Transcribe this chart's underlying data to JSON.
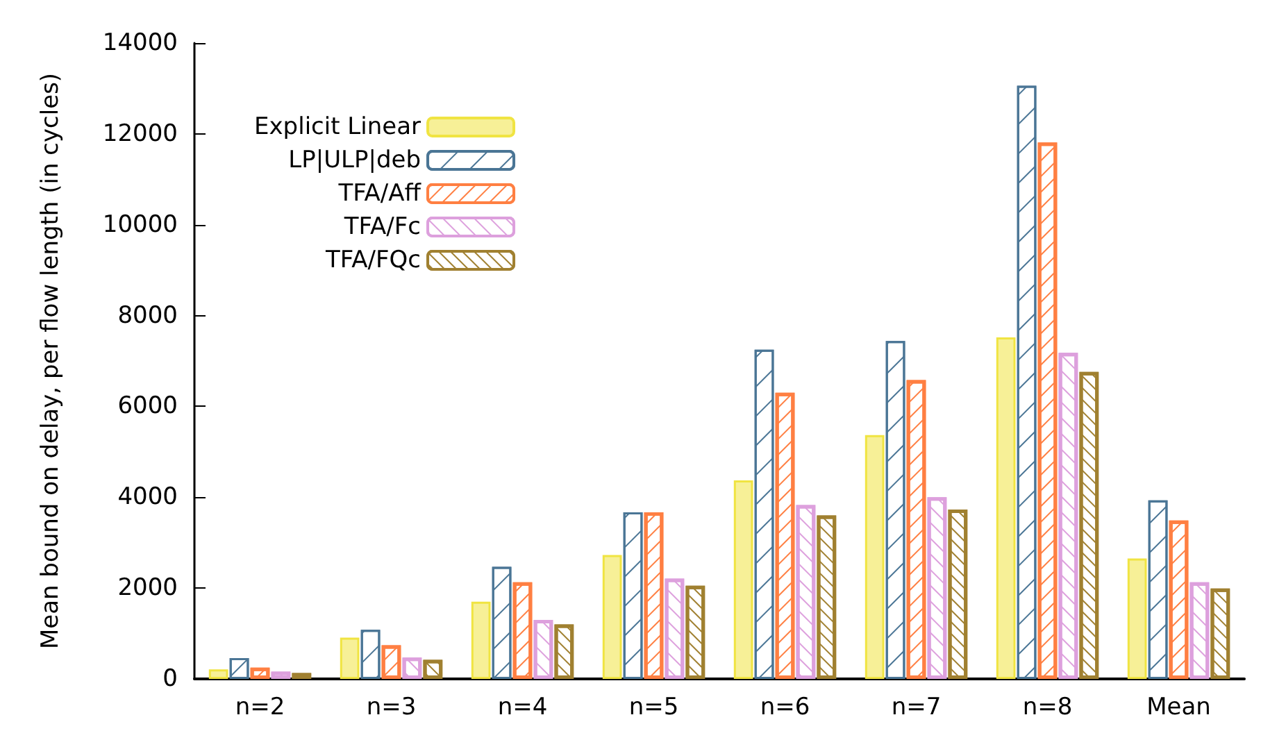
{
  "chart_data": {
    "type": "bar",
    "ylabel": "Mean bound on delay, per flow length (in cycles)",
    "categories": [
      "n=2",
      "n=3",
      "n=4",
      "n=5",
      "n=6",
      "n=7",
      "n=8",
      "Mean"
    ],
    "series": [
      {
        "name": "Explicit Linear",
        "color": "#f0e442",
        "values": [
          210,
          910,
          1700,
          2730,
          4370,
          5370,
          7520,
          2650
        ]
      },
      {
        "name": "LP|ULP|deb",
        "color": "#4a7595",
        "values": [
          460,
          1080,
          2470,
          3670,
          7250,
          7440,
          13060,
          3930
        ]
      },
      {
        "name": "TFA/Aff",
        "color": "#ff7f42",
        "values": [
          250,
          740,
          2130,
          3670,
          6300,
          6580,
          11810,
          3490
        ]
      },
      {
        "name": "TFA/Fc",
        "color": "#dda0dd",
        "values": [
          160,
          470,
          1300,
          2210,
          3830,
          4000,
          7180,
          2130
        ]
      },
      {
        "name": "TFA/FQc",
        "color": "#a08030",
        "values": [
          130,
          420,
          1200,
          2050,
          3600,
          3730,
          6760,
          1990
        ]
      }
    ],
    "ylim": [
      0,
      14000
    ],
    "yticks": [
      0,
      2000,
      4000,
      6000,
      8000,
      10000,
      12000,
      14000
    ],
    "grid": false,
    "legend": "top left"
  }
}
